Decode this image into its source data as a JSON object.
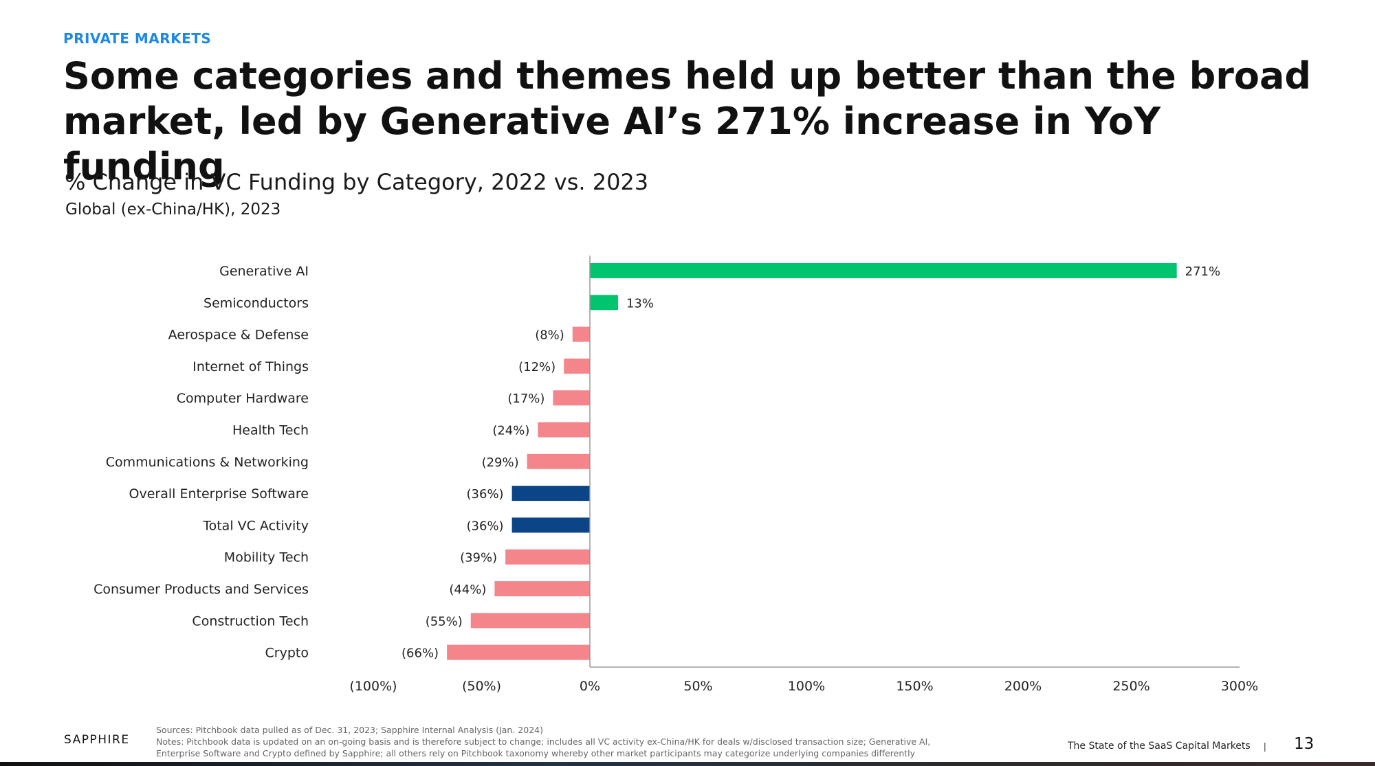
{
  "header": {
    "eyebrow": "PRIVATE MARKETS",
    "headline_line1": "Some categories and themes held up better than the broad",
    "headline_line2": "market, led by Generative AI’s 271% increase in YoY funding",
    "subtitle": "% Change in VC Funding by Category, 2022 vs. 2023",
    "subtitle2": "Global (ex-China/HK), 2023"
  },
  "chart_data": {
    "type": "bar",
    "orientation": "horizontal",
    "title": "% Change in VC Funding by Category, 2022 vs. 2023",
    "subtitle": "Global (ex-China/HK), 2023",
    "categories": [
      "Generative AI",
      "Semiconductors",
      "Aerospace & Defense",
      "Internet of Things",
      "Computer Hardware",
      "Health Tech",
      "Communications & Networking",
      "Overall Enterprise Software",
      "Total VC Activity",
      "Mobility Tech",
      "Consumer Products and Services",
      "Construction Tech",
      "Crypto"
    ],
    "values": [
      271,
      13,
      -8,
      -12,
      -17,
      -24,
      -29,
      -36,
      -36,
      -39,
      -44,
      -55,
      -66
    ],
    "value_labels": [
      "271%",
      "13%",
      "(8%)",
      "(12%)",
      "(17%)",
      "(24%)",
      "(29%)",
      "(36%)",
      "(36%)",
      "(39%)",
      "(44%)",
      "(55%)",
      "(66%)"
    ],
    "bar_colors": [
      "#00c46e",
      "#00c46e",
      "#f4858a",
      "#f4858a",
      "#f4858a",
      "#f4858a",
      "#f4858a",
      "#0b4588",
      "#0b4588",
      "#f4858a",
      "#f4858a",
      "#f4858a",
      "#f4858a"
    ],
    "xlim": [
      -100,
      300
    ],
    "xticks": [
      -100,
      -50,
      0,
      50,
      100,
      150,
      200,
      250,
      300
    ],
    "xtick_labels": [
      "(100%)",
      "(50%)",
      "0%",
      "50%",
      "100%",
      "150%",
      "200%",
      "250%",
      "300%"
    ],
    "xlabel": "",
    "ylabel": "",
    "grid": false,
    "legend": "none"
  },
  "footer": {
    "brand": "SAPPHIRE",
    "notes_line1": "Sources: Pitchbook data pulled as of Dec. 31, 2023; Sapphire Internal Analysis (Jan. 2024)",
    "notes_line2": "Notes: Pitchbook data is updated on an on-going basis and is therefore subject to change; includes all VC activity ex-China/HK for deals w/disclosed transaction size; Generative AI,",
    "notes_line3": "Enterprise Software and Crypto defined by Sapphire; all others rely on Pitchbook taxonomy whereby other market participants may categorize underlying companies differently",
    "report_title": "The State of the SaaS Capital Markets",
    "separator": "|",
    "page_number": "13"
  }
}
